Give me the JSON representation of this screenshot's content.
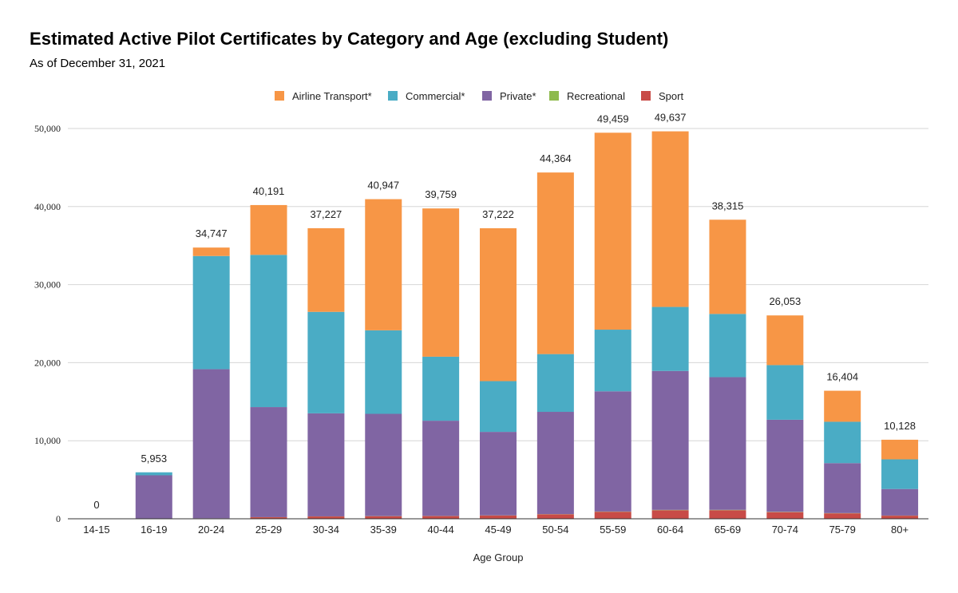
{
  "title": "Estimated Active Pilot Certificates by Category and Age (excluding Student)",
  "subtitle": "As of December 31, 2021",
  "chart_data": {
    "type": "bar",
    "stacked": true,
    "title": "Estimated Active Pilot Certificates by Category and Age (excluding Student)",
    "subtitle": "As of December 31, 2021",
    "xlabel": "Age Group",
    "ylabel": "",
    "ylim": [
      0,
      50000
    ],
    "yticks": [
      "0",
      "10,000",
      "20,000",
      "30,000",
      "40,000",
      "50,000"
    ],
    "grid": true,
    "legend_position": "top",
    "categories": [
      "14-15",
      "16-19",
      "20-24",
      "25-29",
      "30-34",
      "35-39",
      "40-44",
      "45-49",
      "50-54",
      "55-59",
      "60-64",
      "65-69",
      "70-74",
      "75-79",
      "80+"
    ],
    "totals": [
      "0",
      "5,953",
      "34,747",
      "40,191",
      "37,227",
      "40,947",
      "39,759",
      "37,222",
      "44,364",
      "49,459",
      "49,637",
      "38,315",
      "26,053",
      "16,404",
      "10,128"
    ],
    "series": [
      {
        "name": "Sport",
        "color": "#c84b47",
        "values": [
          0,
          20,
          60,
          200,
          300,
          330,
          350,
          420,
          580,
          900,
          1100,
          1100,
          850,
          700,
          400
        ]
      },
      {
        "name": "Recreational",
        "color": "#8eba4d",
        "values": [
          0,
          0,
          5,
          10,
          10,
          15,
          15,
          15,
          20,
          30,
          40,
          45,
          40,
          30,
          15
        ]
      },
      {
        "name": "Private*",
        "color": "#8065a3",
        "values": [
          0,
          5553,
          19100,
          14100,
          13200,
          13100,
          12200,
          10700,
          13100,
          15400,
          17800,
          17000,
          11800,
          6400,
          3400
        ]
      },
      {
        "name": "Commercial*",
        "color": "#4aacc5",
        "values": [
          0,
          380,
          14500,
          19500,
          13000,
          10700,
          8200,
          6500,
          7400,
          7900,
          8200,
          8100,
          7000,
          5300,
          3800
        ]
      },
      {
        "name": "Airline Transport*",
        "color": "#f79646",
        "values": [
          0,
          0,
          1082,
          6381,
          10717,
          16802,
          18994,
          19587,
          23264,
          25229,
          22497,
          12070,
          6363,
          3974,
          2513
        ]
      }
    ],
    "legend_order": [
      "Airline Transport*",
      "Commercial*",
      "Private*",
      "Recreational",
      "Sport"
    ]
  }
}
